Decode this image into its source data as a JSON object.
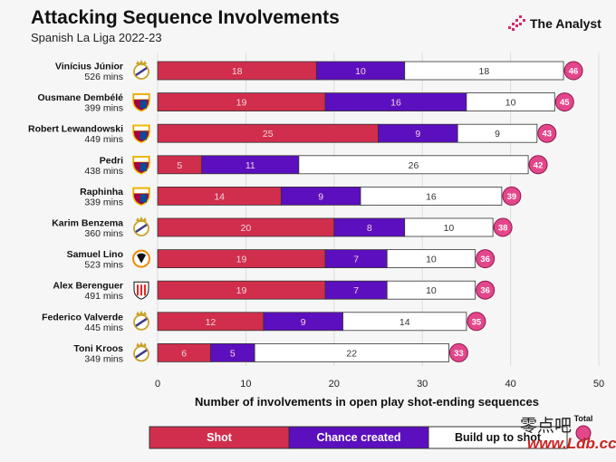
{
  "header": {
    "title": "Attacking Sequence Involvements",
    "subtitle": "Spanish La Liga 2022-23",
    "brand": "The Analyst"
  },
  "colors": {
    "shot": "#d12e4d",
    "chance": "#5c0fbe",
    "buildup": "#ffffff",
    "total": "#e4468c",
    "real-madrid": "#ffffff",
    "barcelona": "#a50044",
    "valencia": "#f18a00",
    "athletic": "#ee2523"
  },
  "watermark": {
    "chars": "零点吧",
    "url": "www.Ldb.cc"
  },
  "chart_data": {
    "type": "bar",
    "stacked": true,
    "orientation": "horizontal",
    "title": "Attacking Sequence Involvements",
    "subtitle": "Spanish La Liga 2022-23",
    "xlabel": "Number of involvements in open play shot-ending sequences",
    "xlim": [
      0,
      50
    ],
    "xticks": [
      0,
      10,
      20,
      30,
      40,
      50
    ],
    "grid": true,
    "players": [
      {
        "name": "Vinícius Júnior",
        "mins": "526 mins",
        "club": "real-madrid",
        "total": 46
      },
      {
        "name": "Ousmane Dembélé",
        "mins": "399 mins",
        "club": "barcelona",
        "total": 45
      },
      {
        "name": "Robert Lewandowski",
        "mins": "449 mins",
        "club": "barcelona",
        "total": 43
      },
      {
        "name": "Pedri",
        "mins": "438 mins",
        "club": "barcelona",
        "total": 42
      },
      {
        "name": "Raphinha",
        "mins": "339 mins",
        "club": "barcelona",
        "total": 39
      },
      {
        "name": "Karim Benzema",
        "mins": "360 mins",
        "club": "real-madrid",
        "total": 38
      },
      {
        "name": "Samuel Lino",
        "mins": "523 mins",
        "club": "valencia",
        "total": 36
      },
      {
        "name": "Alex Berenguer",
        "mins": "491 mins",
        "club": "athletic",
        "total": 36
      },
      {
        "name": "Federico Valverde",
        "mins": "445 mins",
        "club": "real-madrid",
        "total": 35
      },
      {
        "name": "Toni Kroos",
        "mins": "349 mins",
        "club": "real-madrid",
        "total": 33
      }
    ],
    "series": [
      {
        "name": "Shot",
        "values": [
          18,
          19,
          25,
          5,
          14,
          20,
          19,
          19,
          12,
          6
        ]
      },
      {
        "name": "Chance created",
        "values": [
          10,
          16,
          9,
          11,
          9,
          8,
          7,
          7,
          9,
          5
        ]
      },
      {
        "name": "Build up to shot",
        "values": [
          18,
          10,
          9,
          26,
          16,
          10,
          10,
          10,
          14,
          22
        ]
      }
    ],
    "legend": {
      "position": "bottom",
      "total_label": "Total"
    }
  }
}
